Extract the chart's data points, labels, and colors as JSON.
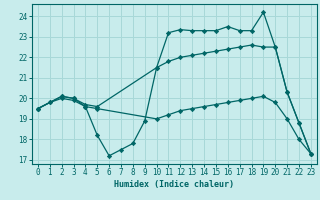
{
  "xlabel": "Humidex (Indice chaleur)",
  "bg_color": "#c8ecec",
  "grid_color": "#a8d8d8",
  "line_color": "#006666",
  "ylim": [
    16.8,
    24.6
  ],
  "xlim": [
    -0.5,
    23.5
  ],
  "yticks": [
    17,
    18,
    19,
    20,
    21,
    22,
    23,
    24
  ],
  "xticks": [
    0,
    1,
    2,
    3,
    4,
    5,
    6,
    7,
    8,
    9,
    10,
    11,
    12,
    13,
    14,
    15,
    16,
    17,
    18,
    19,
    20,
    21,
    22,
    23
  ],
  "line_zigzag": {
    "x": [
      0,
      1,
      2,
      3,
      4,
      5,
      6,
      7,
      8,
      9,
      10,
      11,
      12,
      13,
      14,
      15,
      16,
      17,
      18,
      19,
      20,
      21,
      22,
      23
    ],
    "y": [
      19.5,
      19.8,
      20.1,
      20.0,
      19.6,
      18.2,
      17.2,
      17.5,
      17.8,
      18.9,
      21.5,
      23.2,
      23.35,
      23.3,
      23.3,
      23.3,
      23.5,
      23.3,
      23.3,
      24.2,
      22.5,
      20.3,
      18.8,
      17.3
    ]
  },
  "line_upper": {
    "x": [
      0,
      2,
      3,
      4,
      5,
      10,
      11,
      12,
      13,
      14,
      15,
      16,
      17,
      18,
      19,
      20,
      21,
      22,
      23
    ],
    "y": [
      19.5,
      20.1,
      20.0,
      19.7,
      19.6,
      21.5,
      21.8,
      22.0,
      22.1,
      22.2,
      22.3,
      22.4,
      22.5,
      22.6,
      22.5,
      22.5,
      20.3,
      18.8,
      17.3
    ]
  },
  "line_lower": {
    "x": [
      0,
      1,
      2,
      3,
      4,
      5,
      10,
      11,
      12,
      13,
      14,
      15,
      16,
      17,
      18,
      19,
      20,
      21,
      22,
      23
    ],
    "y": [
      19.5,
      19.8,
      20.0,
      19.9,
      19.6,
      19.5,
      19.0,
      19.2,
      19.4,
      19.5,
      19.6,
      19.7,
      19.8,
      19.9,
      20.0,
      20.1,
      19.8,
      19.0,
      18.0,
      17.3
    ]
  }
}
